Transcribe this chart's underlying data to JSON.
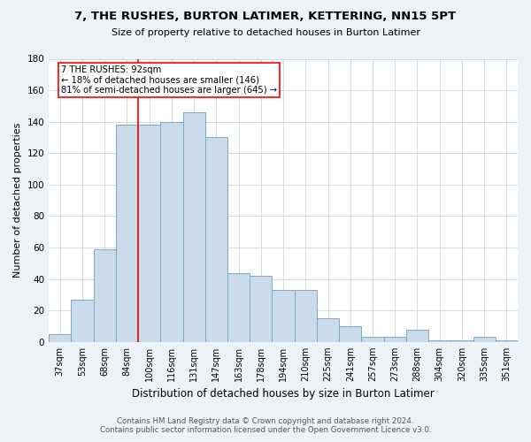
{
  "title": "7, THE RUSHES, BURTON LATIMER, KETTERING, NN15 5PT",
  "subtitle": "Size of property relative to detached houses in Burton Latimer",
  "xlabel": "Distribution of detached houses by size in Burton Latimer",
  "ylabel": "Number of detached properties",
  "bar_color": "#c9daea",
  "bar_edge_color": "#7aaac8",
  "categories": [
    "37sqm",
    "53sqm",
    "68sqm",
    "84sqm",
    "100sqm",
    "116sqm",
    "131sqm",
    "147sqm",
    "163sqm",
    "178sqm",
    "194sqm",
    "210sqm",
    "225sqm",
    "241sqm",
    "257sqm",
    "273sqm",
    "288sqm",
    "304sqm",
    "320sqm",
    "335sqm",
    "351sqm"
  ],
  "values": [
    5,
    27,
    59,
    138,
    138,
    140,
    146,
    130,
    44,
    42,
    33,
    33,
    15,
    10,
    3,
    3,
    8,
    1,
    1,
    3,
    1
  ],
  "ylim": [
    0,
    180
  ],
  "yticks": [
    0,
    20,
    40,
    60,
    80,
    100,
    120,
    140,
    160,
    180
  ],
  "marker_label": "7 THE RUSHES: 92sqm",
  "annotation_line1": "← 18% of detached houses are smaller (146)",
  "annotation_line2": "81% of semi-detached houses are larger (645) →",
  "marker_bar_index": 4,
  "footer_line1": "Contains HM Land Registry data © Crown copyright and database right 2024.",
  "footer_line2": "Contains public sector information licensed under the Open Government Licence v3.0.",
  "bg_color": "#edf2f7",
  "plot_bg_color": "#ffffff",
  "grid_color": "#c8d4de"
}
